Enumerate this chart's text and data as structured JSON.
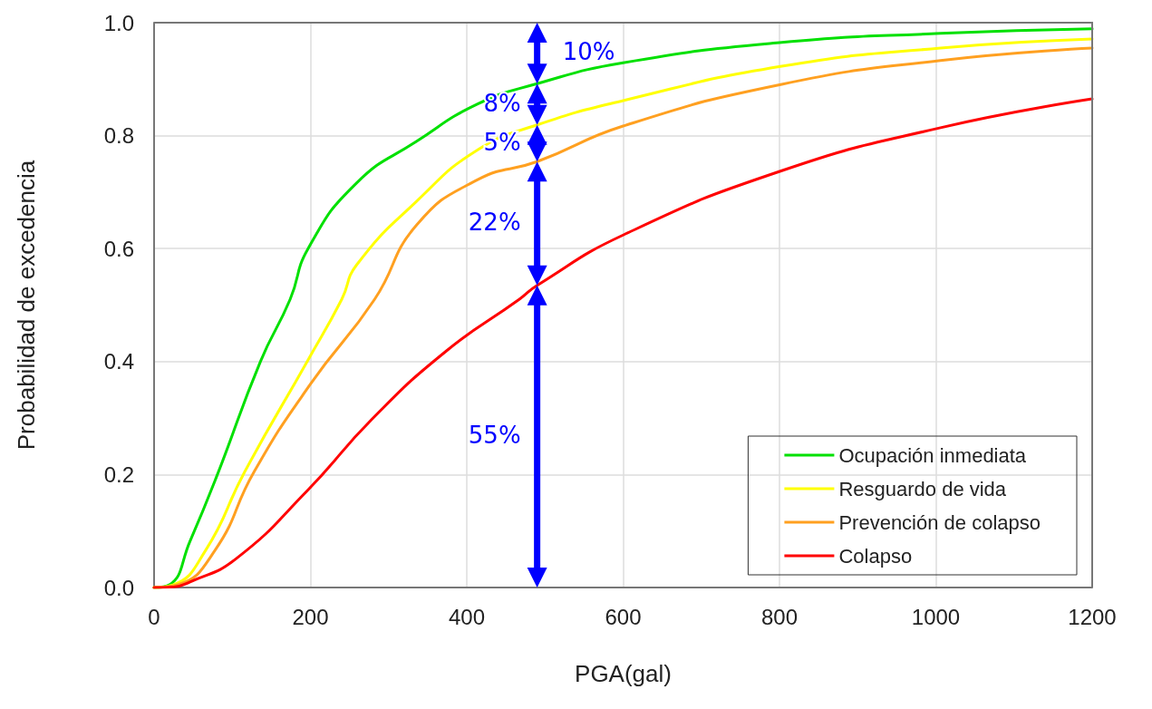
{
  "chart_data": {
    "type": "line",
    "xlabel": "PGA(gal)",
    "ylabel": "Probabilidad de excedencia",
    "xlim": [
      0,
      1200
    ],
    "xticks": [
      0,
      200,
      400,
      600,
      800,
      1000,
      1200
    ],
    "ylim": [
      0,
      1
    ],
    "yticks": [
      {
        "value": 0,
        "label": "0.0"
      },
      {
        "value": 0.2,
        "label": "0.2"
      },
      {
        "value": 0.4,
        "label": "0.4"
      },
      {
        "value": 0.6,
        "label": "0.6"
      },
      {
        "value": 0.8,
        "label": "0.8"
      },
      {
        "value": 1,
        "label": "1.0"
      }
    ],
    "grid": true,
    "legend": "bottom right",
    "marker": "none",
    "line_style": "solid",
    "series": [
      {
        "name": "Ocupación inmediata",
        "color": "#00e000",
        "x": [
          0,
          20,
          46,
          81,
          136,
          174,
          197,
          259,
          336,
          414,
          490,
          600,
          803,
          1006,
          1200
        ],
        "values": [
          0,
          0.005,
          0.082,
          0.2,
          0.4,
          0.51,
          0.6,
          0.716,
          0.79,
          0.856,
          0.892,
          0.929,
          0.965,
          0.981,
          0.989
        ]
      },
      {
        "name": "Resguardo de vida",
        "color": "#ffff00",
        "x": [
          0,
          25,
          66,
          116,
          197,
          240,
          259,
          336,
          414,
          490,
          600,
          803,
          1006,
          1200
        ],
        "values": [
          0,
          0.005,
          0.066,
          0.205,
          0.403,
          0.51,
          0.571,
          0.684,
          0.775,
          0.819,
          0.862,
          0.923,
          0.955,
          0.971
        ]
      },
      {
        "name": "Prevención de colapso",
        "color": "#ffa020",
        "x": [
          0,
          30,
          78,
          128,
          200,
          282,
          336,
          414,
          490,
          600,
          803,
          1006,
          1200
        ],
        "values": [
          0,
          0.005,
          0.066,
          0.205,
          0.36,
          0.51,
          0.642,
          0.722,
          0.754,
          0.817,
          0.891,
          0.933,
          0.955
        ]
      },
      {
        "name": "Colapso",
        "color": "#ff0000",
        "x": [
          0,
          25,
          46,
          104,
          197,
          278,
          374,
          467,
          490,
          600,
          803,
          1006,
          1200
        ],
        "values": [
          0,
          0.001,
          0.01,
          0.05,
          0.173,
          0.297,
          0.419,
          0.51,
          0.535,
          0.624,
          0.738,
          0.814,
          0.865
        ]
      }
    ],
    "ref_lines": [
      {
        "axis": "x",
        "value": 490,
        "color": "#0000ff"
      }
    ],
    "annotations": [
      "10%",
      "8%",
      "5%",
      "22%",
      "55%"
    ]
  }
}
